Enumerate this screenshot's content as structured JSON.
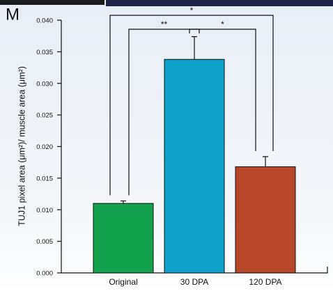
{
  "panel_label": "M",
  "chart_data": {
    "type": "bar",
    "y_label": "TUJ1 pixel area (μm²)/ muscle area (μm²)",
    "categories": [
      "Original",
      "30 DPA",
      "120 DPA"
    ],
    "values": [
      0.011,
      0.0338,
      0.0168
    ],
    "errors": [
      0.0004,
      0.0036,
      0.0016
    ],
    "colors": [
      "#12a24b",
      "#10a1c9",
      "#b84628"
    ],
    "ylim": [
      0,
      0.04
    ],
    "yticks": [
      {
        "value": 0,
        "label": "0.000"
      },
      {
        "value": 0.005,
        "label": "0.005"
      },
      {
        "value": 0.01,
        "label": "0.010"
      },
      {
        "value": 0.015,
        "label": "0.015"
      },
      {
        "value": 0.02,
        "label": "0.020"
      },
      {
        "value": 0.025,
        "label": "0.025"
      },
      {
        "value": 0.03,
        "label": "0.030"
      },
      {
        "value": 0.035,
        "label": "0.035"
      },
      {
        "value": 0.04,
        "label": "0.040"
      }
    ],
    "significance": [
      {
        "between": [
          "Original",
          "30 DPA"
        ],
        "label": "**"
      },
      {
        "between": [
          "30 DPA",
          "120 DPA"
        ],
        "label": "*"
      },
      {
        "between": [
          "Original",
          "120 DPA"
        ],
        "label": "*"
      }
    ]
  }
}
